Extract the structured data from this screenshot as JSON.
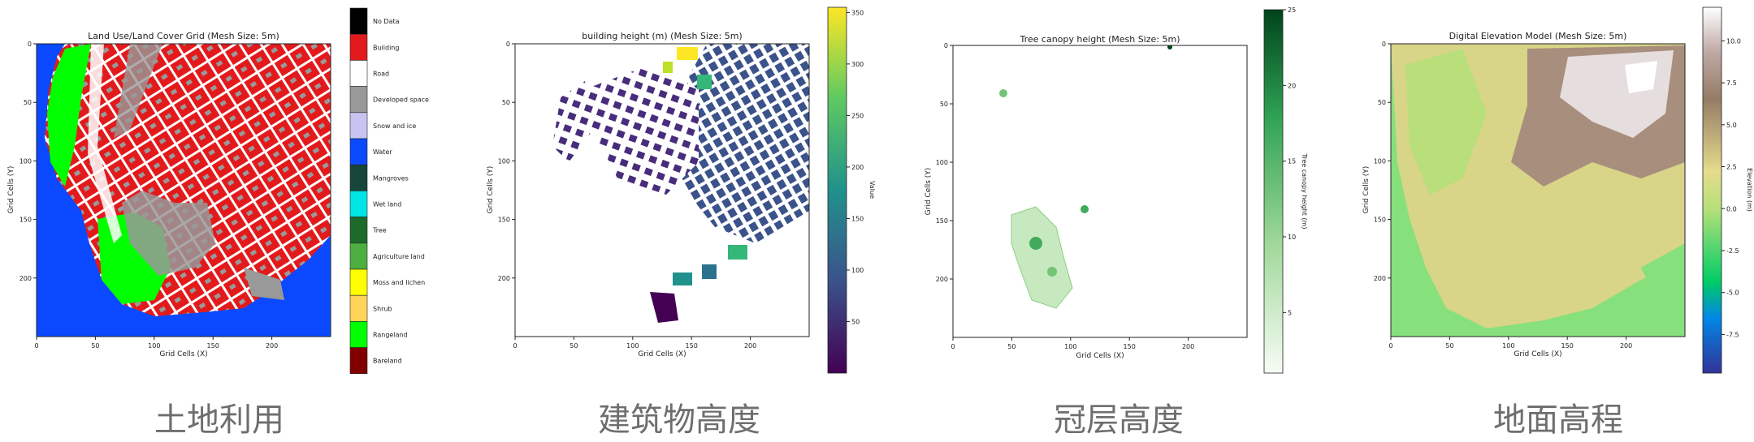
{
  "captions": [
    "土地利用",
    "建筑物高度",
    "冠层高度",
    "地面高程"
  ],
  "chart_data": [
    {
      "type": "heatmap",
      "title": "Land Use/Land Cover Grid (Mesh Size: 5m)",
      "xlabel": "Grid Cells (X)",
      "ylabel": "Grid Cells (Y)",
      "xticks": [
        0,
        50,
        100,
        150,
        200
      ],
      "yticks": [
        0,
        50,
        100,
        150,
        200
      ],
      "xlim": [
        0,
        250
      ],
      "ylim": [
        250,
        0
      ],
      "legend": [
        {
          "label": "No Data",
          "color": "#000000"
        },
        {
          "label": "Building",
          "color": "#e31a1c"
        },
        {
          "label": "Road",
          "color": "#ffffff"
        },
        {
          "label": "Developed space",
          "color": "#999999"
        },
        {
          "label": "Snow and ice",
          "color": "#c8c4f2"
        },
        {
          "label": "Water",
          "color": "#0a49ff"
        },
        {
          "label": "Mangroves",
          "color": "#16463a"
        },
        {
          "label": "Wet land",
          "color": "#00e6e6"
        },
        {
          "label": "Tree",
          "color": "#1d6b2b"
        },
        {
          "label": "Agriculture land",
          "color": "#4caf40"
        },
        {
          "label": "Moss and lichen",
          "color": "#ffff00"
        },
        {
          "label": "Shrub",
          "color": "#ffd457"
        },
        {
          "label": "Rangeland",
          "color": "#00ff00"
        },
        {
          "label": "Bareland",
          "color": "#800000"
        }
      ]
    },
    {
      "type": "heatmap",
      "title": "building height (m) (Mesh Size: 5m)",
      "xlabel": "Grid Cells (X)",
      "ylabel": "Grid Cells (Y)",
      "colorbar_label": "Value",
      "colormap": "viridis",
      "xticks": [
        0,
        50,
        100,
        150,
        200
      ],
      "yticks": [
        0,
        50,
        100,
        150,
        200
      ],
      "xlim": [
        0,
        250
      ],
      "ylim": [
        250,
        0
      ],
      "cbar_ticks": [
        50,
        100,
        150,
        200,
        250,
        300,
        350
      ],
      "cbar_range": [
        0,
        355
      ]
    },
    {
      "type": "heatmap",
      "title": "Tree canopy height (Mesh Size: 5m)",
      "xlabel": "Grid Cells (X)",
      "ylabel": "Grid Cells (Y)",
      "colorbar_label": "Tree canopy height (m)",
      "colormap": "Greens",
      "xticks": [
        0,
        50,
        100,
        150,
        200
      ],
      "yticks": [
        0,
        50,
        100,
        150,
        200
      ],
      "xlim": [
        0,
        250
      ],
      "ylim": [
        250,
        0
      ],
      "cbar_ticks": [
        5,
        10,
        15,
        20,
        25
      ],
      "cbar_range": [
        1,
        25
      ]
    },
    {
      "type": "heatmap",
      "title": "Digital Elevation Model (Mesh Size: 5m)",
      "xlabel": "Grid Cells (X)",
      "ylabel": "Grid Cells (Y)",
      "colorbar_label": "Elevation (m)",
      "colormap": "terrain",
      "xticks": [
        0,
        50,
        100,
        150,
        200
      ],
      "yticks": [
        0,
        50,
        100,
        150,
        200
      ],
      "xlim": [
        0,
        250
      ],
      "ylim": [
        250,
        0
      ],
      "cbar_ticks": [
        "-7.5",
        "-5.0",
        "-2.5",
        "0.0",
        "2.5",
        "5.0",
        "7.5",
        "10.0"
      ],
      "cbar_range": [
        -9.8,
        12
      ]
    }
  ]
}
